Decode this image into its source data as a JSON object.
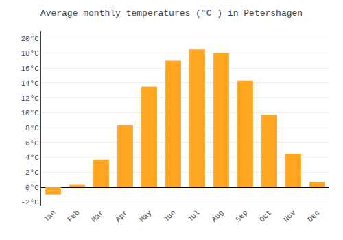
{
  "chart_data": {
    "type": "bar",
    "title": "Average monthly temperatures (°C ) in Petershagen",
    "categories": [
      "Jan",
      "Feb",
      "Mar",
      "Apr",
      "May",
      "Jun",
      "Jul",
      "Aug",
      "Sep",
      "Oct",
      "Nov",
      "Dec"
    ],
    "values": [
      -1.0,
      0.3,
      3.7,
      8.3,
      13.5,
      17.0,
      18.5,
      18.0,
      14.3,
      9.7,
      4.5,
      0.7
    ],
    "color": "#FFA520",
    "ylim": [
      -2.5,
      21.0
    ],
    "yticks": [
      {
        "value": -2,
        "label": "-2°C"
      },
      {
        "value": 0,
        "label": "0°C"
      },
      {
        "value": 2,
        "label": "2°C"
      },
      {
        "value": 4,
        "label": "4°C"
      },
      {
        "value": 6,
        "label": "6°C"
      },
      {
        "value": 8,
        "label": "8°C"
      },
      {
        "value": 10,
        "label": "10°C"
      },
      {
        "value": 12,
        "label": "12°C"
      },
      {
        "value": 14,
        "label": "14°C"
      },
      {
        "value": 16,
        "label": "16°C"
      },
      {
        "value": 18,
        "label": "18°C"
      },
      {
        "value": 20,
        "label": "20°C"
      }
    ],
    "grid": true
  }
}
